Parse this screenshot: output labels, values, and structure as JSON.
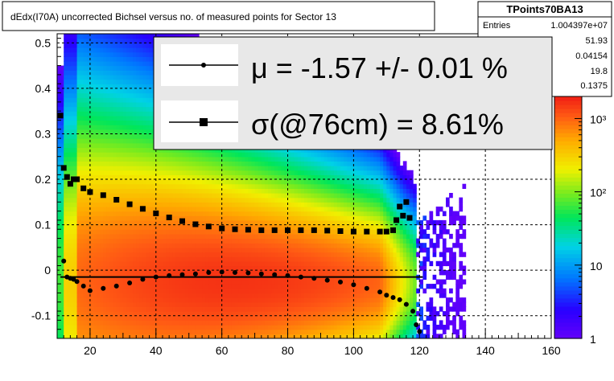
{
  "title": "dEdx(I70A) uncorrected Bichsel versus no. of measured points for Sector 13",
  "stats": {
    "name": "TPoints70BA13",
    "rows": [
      {
        "label": "Entries",
        "value": "1.004397e+07"
      },
      {
        "label": "",
        "value": "51.93"
      },
      {
        "label": "",
        "value": "0.04154"
      },
      {
        "label": "",
        "value": "19.8"
      },
      {
        "label": "",
        "value": "0.1375"
      }
    ]
  },
  "legend": {
    "mu_text": "μ  = -1.57 +/-  0.01 %",
    "sigma_text": "σ(@76cm) =  8.61%"
  },
  "colors": {
    "frame": "#000000",
    "grid": "#000000",
    "legend_bg": "#e8e8e8",
    "marker": "#000000"
  },
  "chart_data": {
    "type": "heatmap",
    "x_axis": {
      "range": [
        10,
        160
      ],
      "ticks": [
        20,
        40,
        60,
        80,
        100,
        120,
        140,
        160
      ]
    },
    "y_axis": {
      "range": [
        -0.15,
        0.52
      ],
      "ticks": [
        -0.1,
        0,
        0.1,
        0.2,
        0.3,
        0.4,
        0.5
      ],
      "tick_labels": [
        "-0.1",
        "0",
        "0.1",
        "0.2",
        "0.3",
        "0.4",
        "0.5"
      ]
    },
    "z_axis": {
      "scale": "log",
      "range": [
        1,
        2000
      ],
      "ticks": [
        1,
        10,
        100,
        1000
      ],
      "tick_labels": [
        "1",
        "10",
        "10²",
        "10³"
      ]
    },
    "grid": true,
    "density_model": {
      "x_fill_end": 119,
      "x_sparse_end": 134,
      "core_x": 63,
      "core_y": -0.025,
      "peak_count": 1500,
      "sigma_y_low_x": 0.13,
      "sigma_y_high_x": 0.06
    },
    "sigma_series": {
      "marker": "square",
      "x": [
        11,
        12,
        13,
        14,
        15,
        16,
        18,
        20,
        24,
        28,
        32,
        36,
        40,
        44,
        48,
        52,
        56,
        60,
        64,
        68,
        72,
        76,
        80,
        84,
        88,
        92,
        96,
        100,
        104,
        108,
        110,
        112,
        113,
        114,
        115,
        116,
        117
      ],
      "y": [
        0.34,
        0.225,
        0.205,
        0.19,
        0.2,
        0.2,
        0.18,
        0.172,
        0.165,
        0.155,
        0.145,
        0.135,
        0.125,
        0.116,
        0.108,
        0.101,
        0.096,
        0.092,
        0.09,
        0.089,
        0.088,
        0.088,
        0.088,
        0.088,
        0.088,
        0.087,
        0.086,
        0.085,
        0.085,
        0.085,
        0.085,
        0.088,
        0.11,
        0.14,
        0.12,
        0.15,
        0.115
      ]
    },
    "mu_series": {
      "marker": "circle",
      "x": [
        12,
        13,
        14,
        15,
        16,
        18,
        20,
        24,
        28,
        32,
        36,
        40,
        44,
        48,
        52,
        56,
        60,
        64,
        68,
        72,
        76,
        80,
        84,
        88,
        92,
        96,
        100,
        104,
        108,
        110,
        112,
        114,
        116,
        118,
        119,
        120
      ],
      "y": [
        0.02,
        -0.015,
        -0.018,
        -0.02,
        -0.025,
        -0.035,
        -0.045,
        -0.04,
        -0.035,
        -0.028,
        -0.02,
        -0.015,
        -0.012,
        -0.01,
        -0.008,
        -0.005,
        -0.004,
        -0.005,
        -0.006,
        -0.008,
        -0.01,
        -0.012,
        -0.015,
        -0.018,
        -0.022,
        -0.026,
        -0.032,
        -0.04,
        -0.048,
        -0.055,
        -0.06,
        -0.065,
        -0.075,
        -0.09,
        -0.12,
        -0.135
      ]
    },
    "reference_line": {
      "x": [
        11,
        121
      ],
      "y": -0.015
    }
  }
}
